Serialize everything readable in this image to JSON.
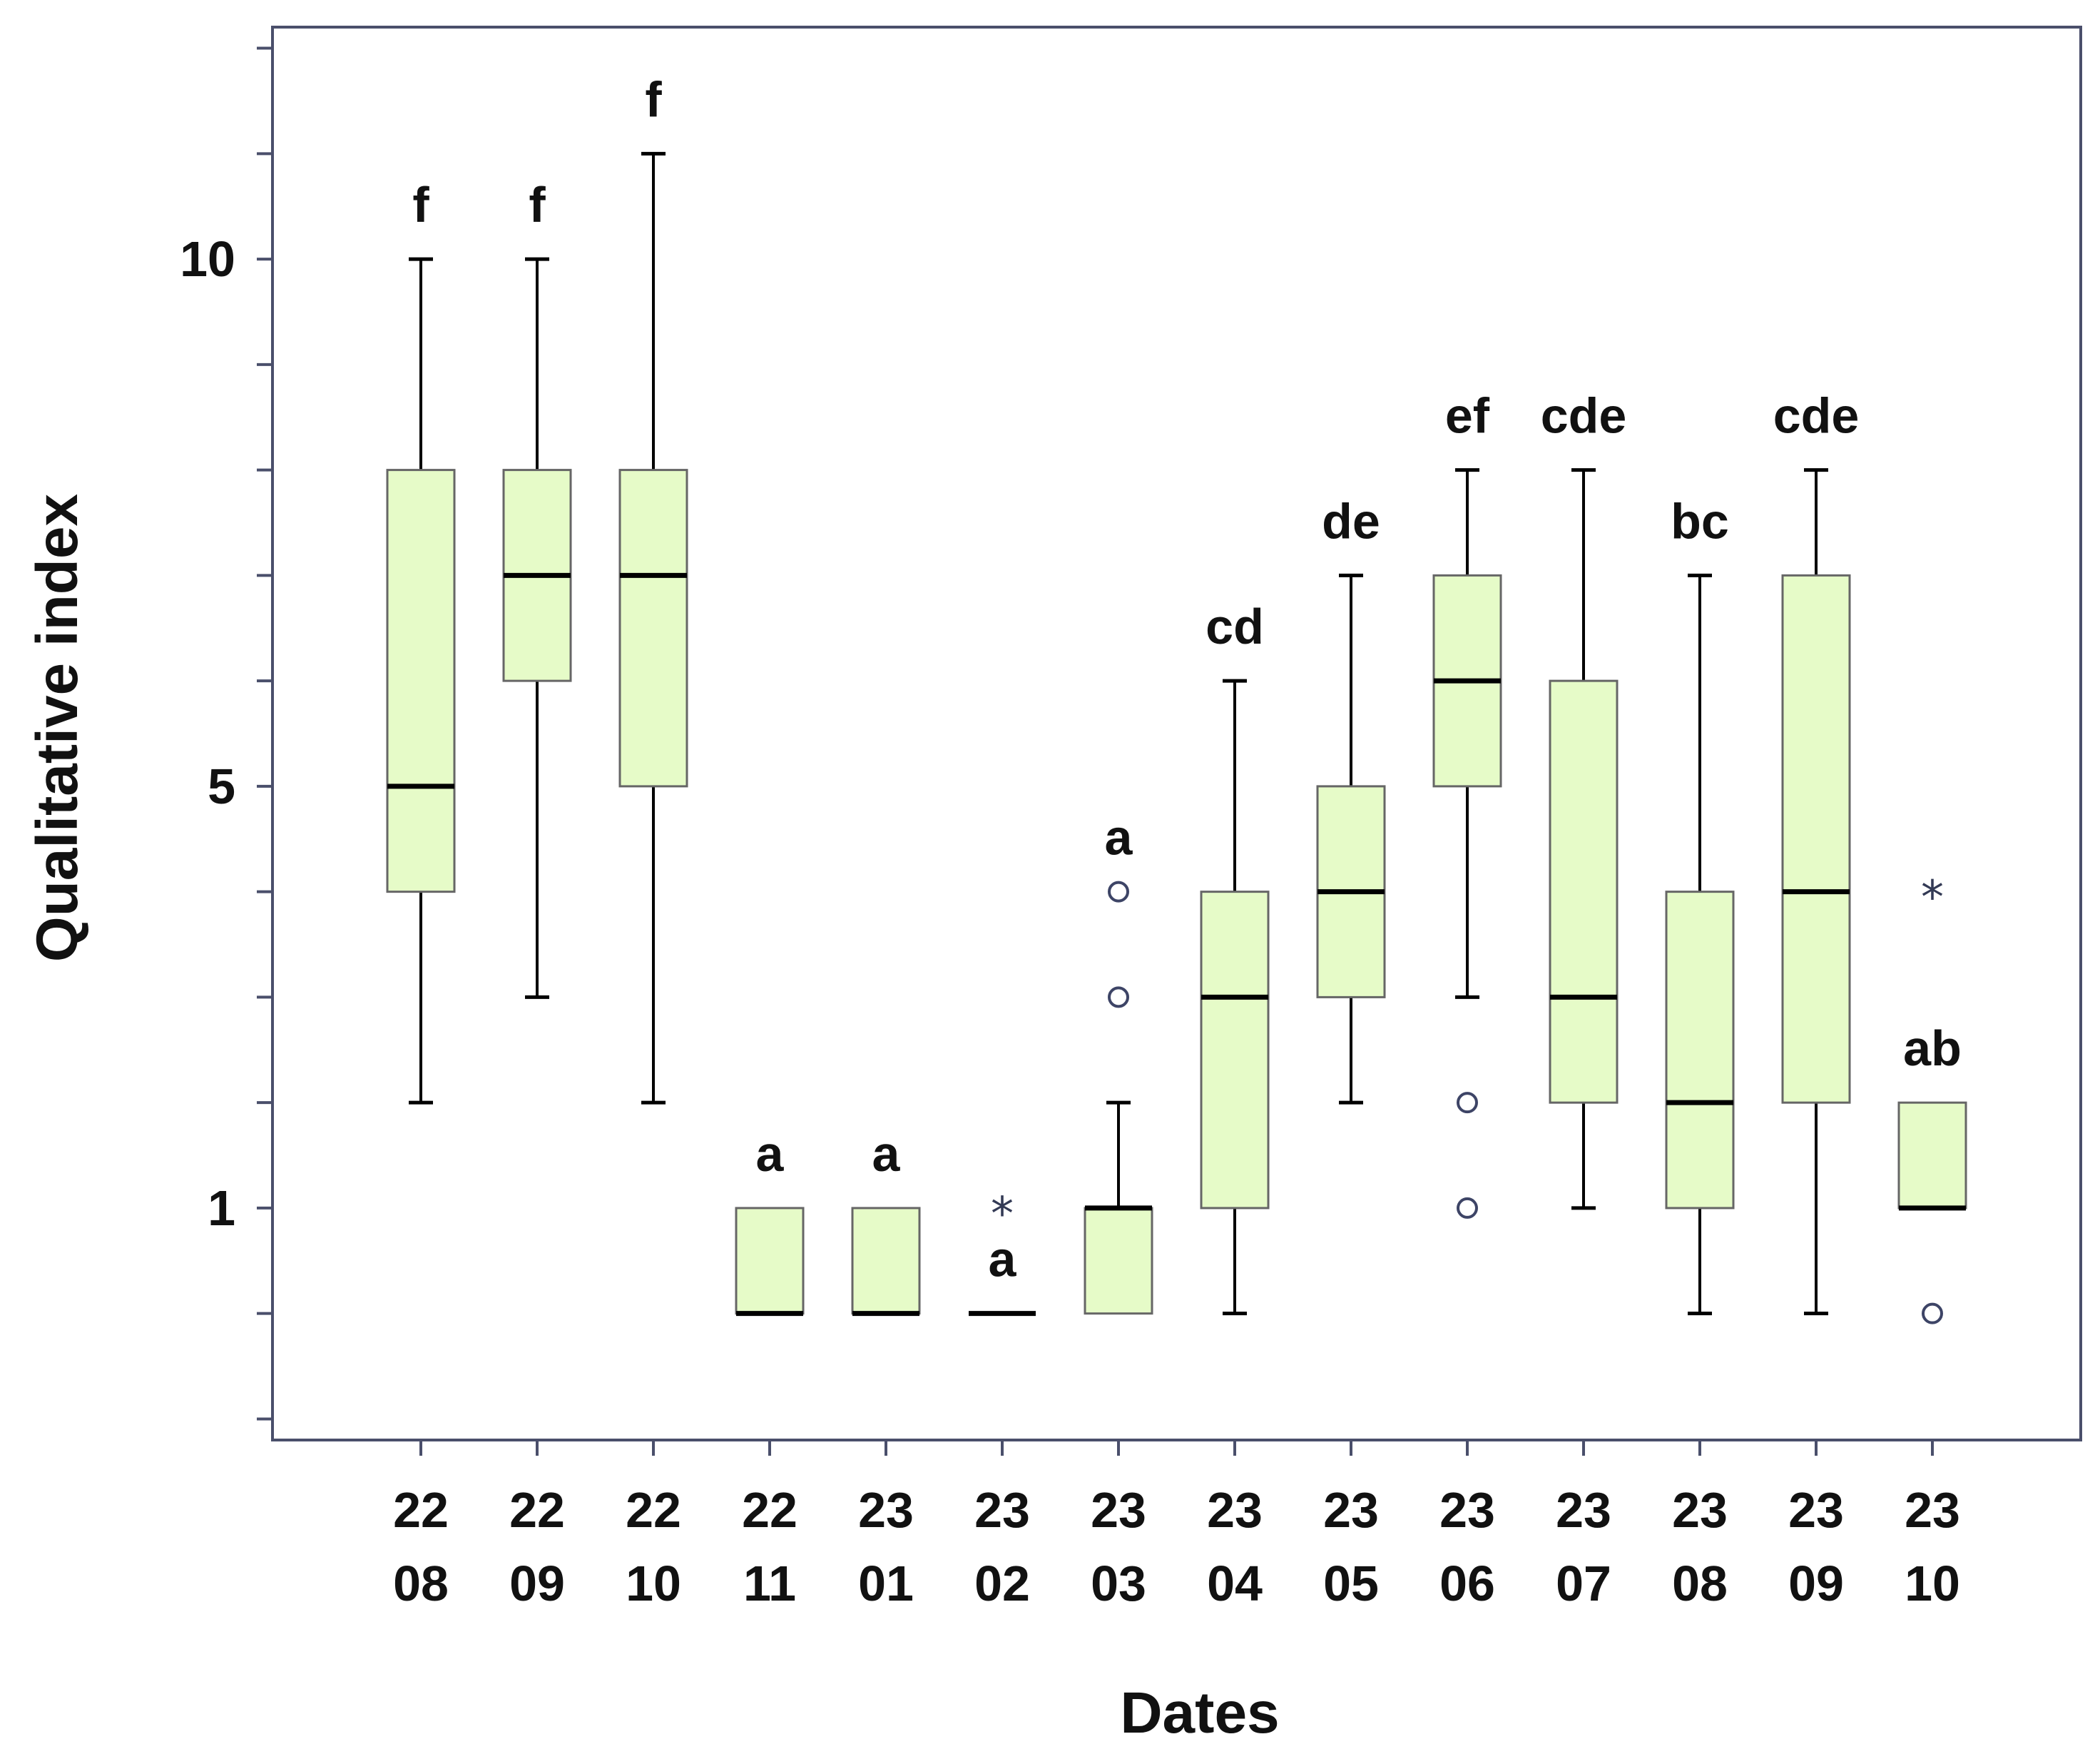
{
  "chart_data": {
    "type": "boxplot",
    "title": "",
    "xlabel": "Dates",
    "ylabel": "Qualitative index",
    "y_ticks": [
      1,
      5,
      10
    ],
    "y_tick_labels": [
      "1",
      "5",
      "10"
    ],
    "ylim": [
      -1.2,
      12.2
    ],
    "colors": {
      "box_fill": "#e6fbc8",
      "box_stroke": "#666666",
      "axis": "#4a4f6b",
      "median": "#000000",
      "outlier": "#3d4466"
    },
    "series": [
      {
        "label_top": "22",
        "label_bottom": "08",
        "group": "f",
        "whisker_low": 2,
        "q1": 4,
        "median": 5,
        "q3": 8,
        "whisker_high": 10,
        "outliers": [],
        "extremes": []
      },
      {
        "label_top": "22",
        "label_bottom": "09",
        "group": "f",
        "whisker_low": 3,
        "q1": 6,
        "median": 7,
        "q3": 8,
        "whisker_high": 10,
        "outliers": [],
        "extremes": []
      },
      {
        "label_top": "22",
        "label_bottom": "10",
        "group": "f",
        "whisker_low": 2,
        "q1": 5,
        "median": 7,
        "q3": 8,
        "whisker_high": 11,
        "outliers": [],
        "extremes": []
      },
      {
        "label_top": "22",
        "label_bottom": "11",
        "group": "a",
        "whisker_low": 0,
        "q1": 0,
        "median": 0,
        "q3": 1,
        "whisker_high": 1,
        "outliers": [],
        "extremes": []
      },
      {
        "label_top": "23",
        "label_bottom": "01",
        "group": "a",
        "whisker_low": 0,
        "q1": 0,
        "median": 0,
        "q3": 1,
        "whisker_high": 1,
        "outliers": [],
        "extremes": []
      },
      {
        "label_top": "23",
        "label_bottom": "02",
        "group": "a",
        "whisker_low": 0,
        "q1": 0,
        "median": 0,
        "q3": 0,
        "whisker_high": 0,
        "outliers": [],
        "extremes": [
          1
        ]
      },
      {
        "label_top": "23",
        "label_bottom": "03",
        "group": "a",
        "whisker_low": 0,
        "q1": 0,
        "median": 1,
        "q3": 1,
        "whisker_high": 2,
        "outliers": [
          3,
          4
        ],
        "extremes": []
      },
      {
        "label_top": "23",
        "label_bottom": "04",
        "group": "cd",
        "whisker_low": 0,
        "q1": 1,
        "median": 3,
        "q3": 4,
        "whisker_high": 6,
        "outliers": [],
        "extremes": []
      },
      {
        "label_top": "23",
        "label_bottom": "05",
        "group": "de",
        "whisker_low": 2,
        "q1": 3,
        "median": 4,
        "q3": 5,
        "whisker_high": 7,
        "outliers": [],
        "extremes": []
      },
      {
        "label_top": "23",
        "label_bottom": "06",
        "group": "ef",
        "whisker_low": 3,
        "q1": 5,
        "median": 6,
        "q3": 7,
        "whisker_high": 8,
        "outliers": [
          2,
          1
        ],
        "extremes": []
      },
      {
        "label_top": "23",
        "label_bottom": "07",
        "group": "cde",
        "whisker_low": 1,
        "q1": 2,
        "median": 3,
        "q3": 6,
        "whisker_high": 8,
        "outliers": [],
        "extremes": []
      },
      {
        "label_top": "23",
        "label_bottom": "08",
        "group": "bc",
        "whisker_low": 0,
        "q1": 1,
        "median": 2,
        "q3": 4,
        "whisker_high": 7,
        "outliers": [],
        "extremes": []
      },
      {
        "label_top": "23",
        "label_bottom": "09",
        "group": "cde",
        "whisker_low": 0,
        "q1": 2,
        "median": 4,
        "q3": 7,
        "whisker_high": 8,
        "outliers": [],
        "extremes": []
      },
      {
        "label_top": "23",
        "label_bottom": "10",
        "group": "ab",
        "whisker_low": 1,
        "q1": 1,
        "median": 1,
        "q3": 2,
        "whisker_high": 2,
        "outliers": [
          0
        ],
        "extremes": [
          4
        ]
      }
    ]
  }
}
